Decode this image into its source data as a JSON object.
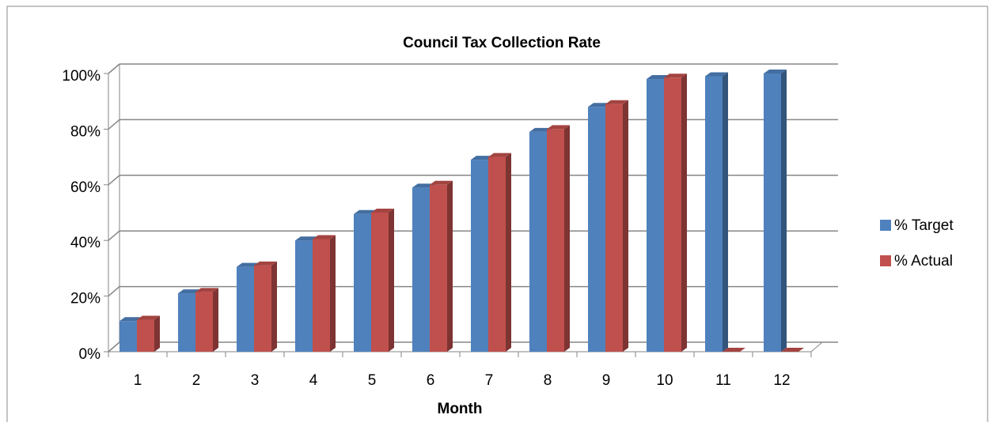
{
  "chart_data": {
    "type": "bar3d",
    "title": "Council Tax Collection Rate",
    "xlabel": "Month",
    "categories": [
      "1",
      "2",
      "3",
      "4",
      "5",
      "6",
      "7",
      "8",
      "9",
      "10",
      "11",
      "12"
    ],
    "series": [
      {
        "name": "% Target",
        "color": "#4f81bd",
        "values": [
          11,
          21,
          30.5,
          40,
          49.5,
          59,
          69,
          79,
          88,
          98,
          99,
          100
        ]
      },
      {
        "name": "% Actual",
        "color": "#c0504d",
        "values": [
          11.5,
          21.5,
          31,
          40.5,
          50,
          60,
          70,
          80,
          89,
          98.5,
          0,
          0
        ]
      }
    ],
    "ylim": [
      0,
      100
    ],
    "yticks": [
      {
        "value": 0,
        "label": "0%"
      },
      {
        "value": 20,
        "label": "20%"
      },
      {
        "value": 40,
        "label": "40%"
      },
      {
        "value": 60,
        "label": "60%"
      },
      {
        "value": 80,
        "label": "80%"
      },
      {
        "value": 100,
        "label": "100%"
      }
    ],
    "grid": true,
    "legend": "right"
  }
}
